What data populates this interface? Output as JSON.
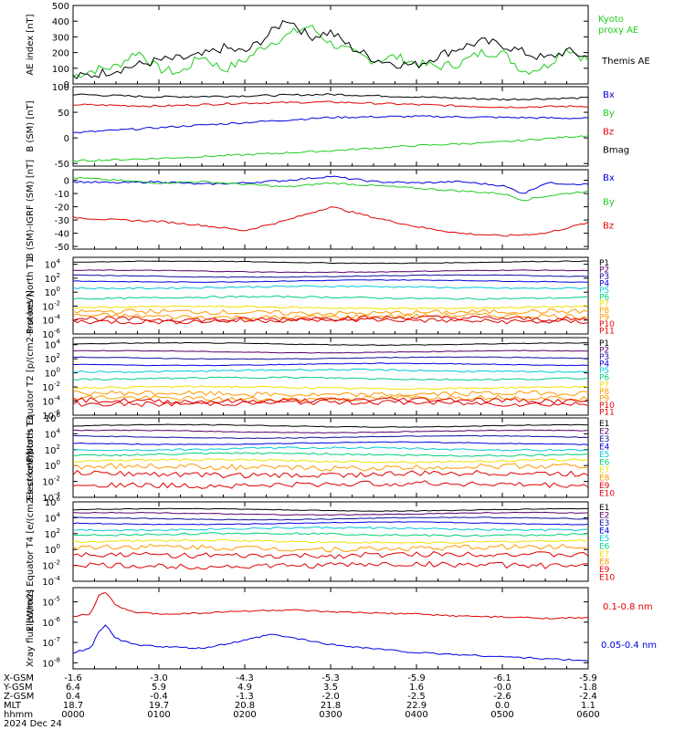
{
  "title": "",
  "colors": {
    "black": "#000000",
    "red": "#e00000",
    "green": "#22cc22",
    "blue": "#0000e0",
    "purple": "#7a00b0",
    "cyan": "#00c8d8",
    "teal": "#00d07a",
    "yellow": "#f0e000",
    "orange": "#ff9a00",
    "navy": "#1010a0",
    "darkpurple": "#5a006a"
  },
  "x_ticks": [
    "0000",
    "0100",
    "0200",
    "0300",
    "0400",
    "0500",
    "0600"
  ],
  "ephemeris": {
    "row_labels": [
      "X-GSM",
      "Y-GSM",
      "Z-GSM",
      "MLT",
      "hhmm"
    ],
    "rows": [
      [
        "-1.6",
        "-3.0",
        "-4.3",
        "-5.3",
        "-5.9",
        "-6.1",
        "-5.9"
      ],
      [
        "6.4",
        "5.9",
        "4.9",
        "3.5",
        "1.6",
        "-0.0",
        "-1.8"
      ],
      [
        "0.4",
        "-0.4",
        "-1.3",
        "-2.0",
        "-2.5",
        "-2.6",
        "-2.4"
      ],
      [
        "18.7",
        "19.7",
        "20.8",
        "21.8",
        "22.9",
        "0.0",
        "1.1"
      ],
      [
        "0000",
        "0100",
        "0200",
        "0300",
        "0400",
        "0500",
        "0600"
      ]
    ],
    "date": "2024 Dec 24"
  },
  "chart_data": [
    {
      "type": "line",
      "id": "ae",
      "ylabel": "AE index [nT]",
      "ylim": [
        0,
        500
      ],
      "yticks": [
        0,
        100,
        200,
        300,
        400,
        500
      ],
      "legend": [
        {
          "text": "Kyoto",
          "color": "green"
        },
        {
          "text": "proxy AE",
          "color": "green"
        },
        {
          "text": "Themis AE",
          "color": "black"
        }
      ],
      "series": [
        {
          "name": "Kyoto proxy AE",
          "color": "green",
          "x": [
            0,
            0.25,
            0.5,
            0.75,
            1,
            1.25,
            1.5,
            1.75,
            2,
            2.25,
            2.5,
            2.75,
            3,
            3.25,
            3.5,
            3.75,
            4,
            4.25,
            4.5,
            4.75,
            5,
            5.25,
            5.5,
            5.75,
            6
          ],
          "y": [
            50,
            90,
            110,
            210,
            95,
            70,
            180,
            90,
            150,
            250,
            310,
            370,
            260,
            200,
            150,
            175,
            130,
            110,
            130,
            200,
            200,
            80,
            110,
            230,
            150
          ]
        },
        {
          "name": "Themis AE",
          "color": "black",
          "x": [
            0,
            0.25,
            0.5,
            0.75,
            1,
            1.25,
            1.5,
            1.75,
            2,
            2.25,
            2.5,
            2.75,
            3,
            3.25,
            3.5,
            3.75,
            4,
            4.25,
            4.5,
            4.75,
            5,
            5.25,
            5.5,
            5.75,
            6
          ],
          "y": [
            40,
            60,
            90,
            120,
            150,
            160,
            180,
            230,
            200,
            300,
            420,
            300,
            330,
            230,
            160,
            130,
            120,
            180,
            230,
            270,
            250,
            200,
            160,
            210,
            170
          ]
        }
      ]
    },
    {
      "type": "line",
      "id": "bsm",
      "ylabel": "B (SM) [nT]",
      "ylim": [
        -55,
        100
      ],
      "yticks": [
        -50,
        0,
        50,
        100
      ],
      "legend": [
        {
          "text": "Bx",
          "color": "blue"
        },
        {
          "text": "By",
          "color": "green"
        },
        {
          "text": "Bz",
          "color": "red"
        },
        {
          "text": "Bmag",
          "color": "black"
        }
      ],
      "series": [
        {
          "name": "Bmag",
          "color": "black",
          "x": [
            0,
            1,
            2,
            3,
            4,
            5,
            6
          ],
          "y": [
            85,
            80,
            82,
            85,
            80,
            75,
            78
          ]
        },
        {
          "name": "Bz",
          "color": "red",
          "x": [
            0,
            1,
            2,
            3,
            4,
            5,
            6
          ],
          "y": [
            65,
            62,
            68,
            70,
            65,
            60,
            62
          ]
        },
        {
          "name": "Bx",
          "color": "blue",
          "x": [
            0,
            1,
            2,
            3,
            4,
            5,
            6
          ],
          "y": [
            10,
            20,
            30,
            40,
            42,
            40,
            38
          ]
        },
        {
          "name": "By",
          "color": "green",
          "x": [
            0,
            1,
            2,
            3,
            4,
            5,
            6
          ],
          "y": [
            -45,
            -40,
            -33,
            -25,
            -15,
            -8,
            5
          ]
        }
      ]
    },
    {
      "type": "line",
      "id": "bsm_igrf",
      "ylabel": "B (SM)-IGRF (SM) [nT]",
      "ylim": [
        -52,
        8
      ],
      "yticks": [
        -50,
        -40,
        -30,
        -20,
        -10,
        0
      ],
      "legend": [
        {
          "text": "Bx",
          "color": "blue"
        },
        {
          "text": "By",
          "color": "green"
        },
        {
          "text": "Bz",
          "color": "red"
        }
      ],
      "series": [
        {
          "name": "Bx",
          "color": "blue",
          "x": [
            0,
            0.5,
            1,
            1.5,
            2,
            2.5,
            3,
            3.5,
            4,
            4.5,
            5,
            5.25,
            5.5,
            6
          ],
          "y": [
            -1,
            -2,
            -1,
            -3,
            -2,
            0,
            3,
            -1,
            -2,
            -1,
            -4,
            -10,
            -2,
            -3
          ]
        },
        {
          "name": "By",
          "color": "green",
          "x": [
            0,
            0.5,
            1,
            1.5,
            2,
            2.5,
            3,
            3.5,
            4,
            4.5,
            5,
            5.25,
            5.5,
            6
          ],
          "y": [
            2,
            0,
            -2,
            -1,
            -3,
            -5,
            -2,
            -4,
            -6,
            -8,
            -10,
            -15,
            -12,
            -8
          ]
        },
        {
          "name": "Bz",
          "color": "red",
          "x": [
            0,
            0.5,
            1,
            1.5,
            2,
            2.5,
            3,
            3.5,
            4,
            4.5,
            5,
            5.5,
            6
          ],
          "y": [
            -28,
            -30,
            -31,
            -34,
            -38,
            -30,
            -20,
            -28,
            -35,
            -40,
            -42,
            -40,
            -32
          ]
        }
      ]
    },
    {
      "type": "line",
      "id": "p_t1",
      "log": true,
      "ylabel": "Protons North T1",
      "ylim_exp": [
        -6,
        5
      ],
      "tick_exps": [
        4,
        2,
        0,
        -2,
        -4,
        -6
      ],
      "labels": [
        "P1",
        "P2",
        "P3",
        "P4",
        "P5",
        "P6",
        "P7",
        "P8",
        "P9",
        "P10",
        "P11"
      ],
      "label_colors": [
        "black",
        "darkpurple",
        "navy",
        "blue",
        "cyan",
        "teal",
        "yellow",
        "orange",
        "orange",
        "red",
        "red"
      ],
      "levels": [
        4.3,
        3.0,
        2.3,
        1.6,
        0.7,
        -0.8,
        -2.2,
        -2.9,
        -3.5,
        -3.8,
        -4.1
      ]
    },
    {
      "type": "line",
      "id": "p_t2",
      "log": true,
      "ylabel": "Protons Equator T2 [p/(cm2-s-sr-keV)]",
      "ylim_exp": [
        -6,
        5
      ],
      "tick_exps": [
        4,
        2,
        0,
        -2,
        -4,
        -6
      ],
      "labels": [
        "P1",
        "P2",
        "P3",
        "P4",
        "P5",
        "P6",
        "P7",
        "P8",
        "P9",
        "P10",
        "P11"
      ],
      "label_colors": [
        "black",
        "darkpurple",
        "navy",
        "blue",
        "cyan",
        "teal",
        "yellow",
        "orange",
        "orange",
        "red",
        "red"
      ],
      "levels": [
        4.1,
        3.0,
        2.1,
        1.2,
        0.3,
        -0.8,
        -2.1,
        -3.0,
        -3.6,
        -3.9,
        -4.3
      ]
    },
    {
      "type": "line",
      "id": "e_t3",
      "log": true,
      "ylabel": "Electrons North T3",
      "ylim_exp": [
        -4,
        6
      ],
      "tick_exps": [
        6,
        4,
        2,
        0,
        -2,
        -4
      ],
      "labels": [
        "E1",
        "E2",
        "E3",
        "E4",
        "E5",
        "E6",
        "E7",
        "E8",
        "E9",
        "E10"
      ],
      "label_colors": [
        "black",
        "darkpurple",
        "navy",
        "blue",
        "cyan",
        "teal",
        "yellow",
        "orange",
        "red",
        "red"
      ],
      "levels": [
        5.0,
        4.3,
        3.6,
        2.8,
        2.1,
        1.4,
        0.6,
        -0.2,
        -1.1,
        -2.4
      ]
    },
    {
      "type": "line",
      "id": "e_t4",
      "log": true,
      "ylabel": "Electrons Equator T4 [e/(cm2-s-sr-keV)]",
      "ylim_exp": [
        -4,
        6
      ],
      "tick_exps": [
        6,
        4,
        2,
        0,
        -2,
        -4
      ],
      "labels": [
        "E1",
        "E2",
        "E3",
        "E4",
        "E5",
        "E6",
        "E7",
        "E8",
        "E9",
        "E10"
      ],
      "label_colors": [
        "black",
        "darkpurple",
        "navy",
        "blue",
        "cyan",
        "teal",
        "yellow",
        "orange",
        "red",
        "red"
      ],
      "levels": [
        5.0,
        4.5,
        3.9,
        3.3,
        2.6,
        1.9,
        1.0,
        0.2,
        -0.7,
        -2.0
      ]
    },
    {
      "type": "line",
      "id": "xray",
      "log": true,
      "ylabel": "Xray flux [W/m2]",
      "ylim_exp": [
        -8.3,
        -4.3
      ],
      "tick_exps": [
        -5,
        -6,
        -7,
        -8
      ],
      "legend": [
        {
          "text": "0.1-0.8 nm",
          "color": "red"
        },
        {
          "text": "0.05-0.4 nm",
          "color": "blue"
        }
      ],
      "series": [
        {
          "name": "0.1-0.8 nm",
          "color": "red",
          "x": [
            0,
            0.2,
            0.3,
            0.38,
            0.5,
            0.7,
            1,
            1.5,
            2,
            2.5,
            3,
            3.5,
            4,
            4.5,
            5,
            5.5,
            6
          ],
          "y": [
            -5.7,
            -5.6,
            -4.7,
            -4.5,
            -5.2,
            -5.5,
            -5.6,
            -5.55,
            -5.45,
            -5.4,
            -5.5,
            -5.55,
            -5.6,
            -5.7,
            -5.75,
            -5.8,
            -5.8
          ]
        },
        {
          "name": "0.05-0.4 nm",
          "color": "blue",
          "x": [
            0,
            0.2,
            0.3,
            0.38,
            0.5,
            0.7,
            1,
            1.5,
            2,
            2.3,
            2.6,
            3,
            3.5,
            4,
            4.5,
            5,
            5.5,
            6
          ],
          "y": [
            -7.5,
            -7.3,
            -6.5,
            -6.1,
            -6.8,
            -7.1,
            -7.2,
            -7.3,
            -6.9,
            -6.6,
            -6.8,
            -7.1,
            -7.3,
            -7.5,
            -7.6,
            -7.7,
            -7.8,
            -7.9
          ]
        }
      ]
    }
  ]
}
